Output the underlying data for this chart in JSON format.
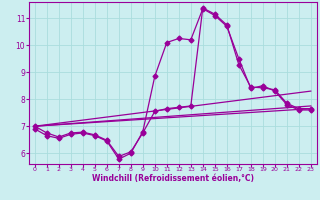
{
  "xlabel": "Windchill (Refroidissement éolien,°C)",
  "background_color": "#cceef0",
  "grid_color": "#aadddd",
  "line_color": "#990099",
  "xlim": [
    -0.5,
    23.5
  ],
  "ylim": [
    5.6,
    11.6
  ],
  "xticks": [
    0,
    1,
    2,
    3,
    4,
    5,
    6,
    7,
    8,
    9,
    10,
    11,
    12,
    13,
    14,
    15,
    16,
    17,
    18,
    19,
    20,
    21,
    22,
    23
  ],
  "yticks": [
    6,
    7,
    8,
    9,
    10,
    11
  ],
  "line1_x": [
    0,
    1,
    2,
    3,
    4,
    5,
    6,
    7,
    8,
    9,
    10,
    11,
    12,
    13,
    14,
    15,
    16,
    17,
    18,
    19,
    20,
    21,
    22,
    23
  ],
  "line1_y": [
    6.9,
    6.65,
    6.55,
    6.7,
    6.75,
    6.65,
    6.45,
    5.78,
    6.0,
    6.8,
    8.85,
    10.1,
    10.25,
    10.2,
    11.35,
    11.1,
    10.7,
    9.5,
    8.4,
    8.5,
    8.3,
    7.8,
    7.6,
    7.6
  ],
  "line2_x": [
    0,
    1,
    2,
    3,
    4,
    5,
    6,
    7,
    8,
    9,
    10,
    11,
    12,
    13,
    14,
    15,
    16,
    17,
    18,
    19,
    20,
    21,
    22,
    23
  ],
  "line2_y": [
    7.0,
    6.75,
    6.6,
    6.75,
    6.78,
    6.68,
    6.48,
    5.88,
    6.05,
    6.75,
    7.55,
    7.65,
    7.7,
    7.75,
    11.38,
    11.15,
    10.75,
    9.28,
    8.45,
    8.42,
    8.35,
    7.85,
    7.65,
    7.65
  ],
  "line3_x": [
    0,
    23
  ],
  "line3_y": [
    7.0,
    8.3
  ],
  "line4_x": [
    0,
    23
  ],
  "line4_y": [
    7.0,
    7.65
  ],
  "line5_x": [
    0,
    23
  ],
  "line5_y": [
    7.0,
    7.75
  ],
  "marker": "D",
  "markersize": 2.5,
  "linewidth": 0.9
}
